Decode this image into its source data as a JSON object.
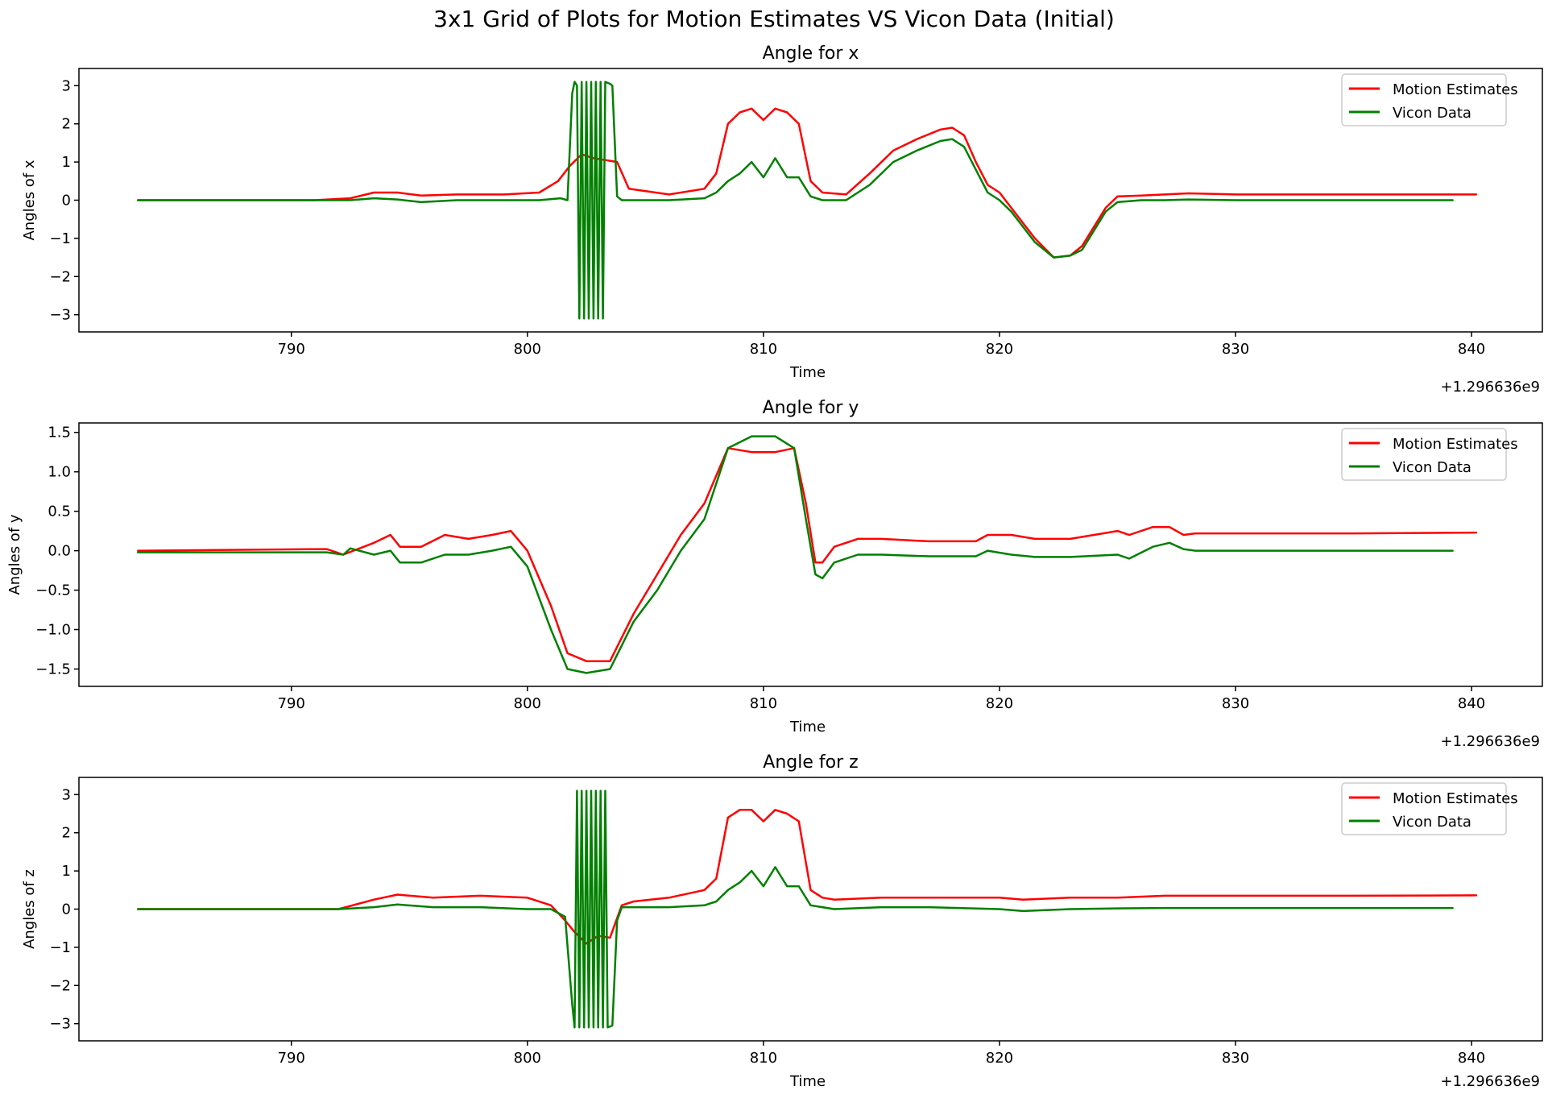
{
  "figure": {
    "suptitle": "3x1 Grid of Plots for Motion Estimates VS Vicon Data (Initial)"
  },
  "legend": {
    "entries": [
      {
        "name": "Motion Estimates",
        "color": "#ff0000"
      },
      {
        "name": "Vicon Data",
        "color": "#008000"
      }
    ]
  },
  "chart_data": [
    {
      "type": "line",
      "title": "Angle for x",
      "xlabel": "Time",
      "ylabel": "Angles of x",
      "offset_text": "+1.296636e9",
      "xlim": [
        781,
        843
      ],
      "ylim": [
        -3.45,
        3.45
      ],
      "xticks": [
        790,
        800,
        810,
        820,
        830,
        840
      ],
      "yticks": [
        -3,
        -2,
        -1,
        0,
        1,
        2,
        3
      ],
      "ytick_labels": [
        "−3",
        "−2",
        "−1",
        "0",
        "1",
        "2",
        "3"
      ],
      "legend_position": "upper right",
      "grid": false,
      "series": [
        {
          "name": "Motion Estimates",
          "color": "#ff0000",
          "x": [
            783.5,
            791.0,
            792.5,
            793.5,
            794.5,
            795.5,
            797.0,
            799.0,
            800.5,
            801.3,
            801.8,
            802.3,
            802.8,
            803.3,
            803.8,
            804.3,
            806.0,
            807.5,
            808.0,
            808.5,
            809.0,
            809.5,
            810.0,
            810.5,
            811.0,
            811.5,
            812.0,
            812.5,
            813.5,
            814.5,
            815.5,
            816.5,
            817.5,
            818.0,
            818.5,
            819.0,
            819.5,
            820.0,
            820.5,
            821.5,
            822.3,
            823.0,
            823.5,
            824.0,
            824.5,
            825.0,
            826.0,
            827.0,
            828.0,
            830.0,
            835.0,
            840.2
          ],
          "y": [
            0.0,
            0.0,
            0.05,
            0.2,
            0.2,
            0.12,
            0.15,
            0.15,
            0.2,
            0.5,
            0.9,
            1.2,
            1.1,
            1.05,
            1.0,
            0.3,
            0.15,
            0.3,
            0.7,
            2.0,
            2.3,
            2.4,
            2.1,
            2.4,
            2.3,
            2.0,
            0.5,
            0.2,
            0.15,
            0.7,
            1.3,
            1.6,
            1.85,
            1.9,
            1.7,
            1.0,
            0.4,
            0.2,
            -0.2,
            -1.0,
            -1.5,
            -1.45,
            -1.2,
            -0.7,
            -0.2,
            0.1,
            0.12,
            0.15,
            0.18,
            0.15,
            0.15,
            0.15
          ]
        },
        {
          "name": "Vicon Data",
          "color": "#008000",
          "x": [
            783.5,
            791.0,
            792.5,
            793.5,
            794.5,
            795.5,
            797.0,
            799.0,
            800.5,
            801.4,
            801.7,
            801.9,
            802.0,
            802.1,
            802.2,
            802.3,
            802.4,
            802.5,
            802.6,
            802.7,
            802.8,
            802.9,
            803.0,
            803.1,
            803.2,
            803.3,
            803.5,
            803.6,
            803.8,
            804.0,
            806.0,
            807.5,
            808.0,
            808.5,
            809.0,
            809.5,
            810.0,
            810.5,
            811.0,
            811.5,
            812.0,
            812.5,
            813.5,
            814.5,
            815.5,
            816.5,
            817.5,
            818.0,
            818.5,
            819.0,
            819.5,
            820.0,
            820.5,
            821.5,
            822.3,
            823.0,
            823.5,
            824.0,
            824.5,
            825.0,
            826.0,
            827.0,
            828.0,
            830.0,
            835.0,
            839.2
          ],
          "y": [
            0.0,
            0.0,
            0.0,
            0.05,
            0.02,
            -0.05,
            0.0,
            0.0,
            0.0,
            0.05,
            0.0,
            2.8,
            3.1,
            3.0,
            -3.1,
            3.1,
            -3.1,
            3.1,
            -3.1,
            3.1,
            -3.1,
            3.1,
            -3.1,
            3.1,
            -3.1,
            3.1,
            3.05,
            3.0,
            0.1,
            0.0,
            0.0,
            0.05,
            0.2,
            0.5,
            0.7,
            1.0,
            0.6,
            1.1,
            0.6,
            0.6,
            0.1,
            0.0,
            0.0,
            0.4,
            1.0,
            1.3,
            1.55,
            1.6,
            1.4,
            0.8,
            0.2,
            0.0,
            -0.3,
            -1.1,
            -1.5,
            -1.45,
            -1.3,
            -0.8,
            -0.3,
            -0.05,
            0.0,
            0.0,
            0.02,
            0.0,
            0.0,
            0.0
          ]
        }
      ]
    },
    {
      "type": "line",
      "title": "Angle for y",
      "xlabel": "Time",
      "ylabel": "Angles of y",
      "offset_text": "+1.296636e9",
      "xlim": [
        781,
        843
      ],
      "ylim": [
        -1.72,
        1.62
      ],
      "xticks": [
        790,
        800,
        810,
        820,
        830,
        840
      ],
      "yticks": [
        -1.5,
        -1.0,
        -0.5,
        0.0,
        0.5,
        1.0,
        1.5
      ],
      "ytick_labels": [
        "−1.5",
        "−1.0",
        "−0.5",
        "0.0",
        "0.5",
        "1.0",
        "1.5"
      ],
      "legend_position": "upper right",
      "grid": false,
      "series": [
        {
          "name": "Motion Estimates",
          "color": "#ff0000",
          "x": [
            783.5,
            791.5,
            792.2,
            793.5,
            794.2,
            794.6,
            795.5,
            796.5,
            797.5,
            798.5,
            799.3,
            800.0,
            801.0,
            801.7,
            802.5,
            803.5,
            804.5,
            805.5,
            806.5,
            807.5,
            808.5,
            809.5,
            810.5,
            811.3,
            811.8,
            812.2,
            812.5,
            813.0,
            814.0,
            815.0,
            817.0,
            819.0,
            819.5,
            820.5,
            821.5,
            823.0,
            825.0,
            825.5,
            826.5,
            827.2,
            827.8,
            828.3,
            830.0,
            835.0,
            840.2
          ],
          "y": [
            0.0,
            0.02,
            -0.05,
            0.1,
            0.2,
            0.05,
            0.05,
            0.2,
            0.15,
            0.2,
            0.25,
            0.0,
            -0.7,
            -1.3,
            -1.4,
            -1.4,
            -0.8,
            -0.3,
            0.2,
            0.6,
            1.3,
            1.25,
            1.25,
            1.3,
            0.6,
            -0.15,
            -0.15,
            0.05,
            0.15,
            0.15,
            0.12,
            0.12,
            0.2,
            0.2,
            0.15,
            0.15,
            0.25,
            0.2,
            0.3,
            0.3,
            0.2,
            0.22,
            0.22,
            0.22,
            0.23
          ]
        },
        {
          "name": "Vicon Data",
          "color": "#008000",
          "x": [
            783.5,
            791.5,
            792.2,
            792.5,
            793.5,
            794.2,
            794.6,
            795.5,
            796.5,
            797.5,
            798.5,
            799.3,
            800.0,
            801.0,
            801.7,
            802.5,
            803.5,
            804.5,
            805.5,
            806.5,
            807.5,
            808.5,
            809.5,
            810.5,
            811.3,
            811.8,
            812.2,
            812.5,
            813.0,
            814.0,
            815.0,
            817.0,
            819.0,
            819.5,
            820.5,
            821.5,
            823.0,
            825.0,
            825.5,
            826.5,
            827.2,
            827.8,
            828.3,
            830.0,
            835.0,
            839.2
          ],
          "y": [
            -0.02,
            -0.02,
            -0.05,
            0.03,
            -0.05,
            0.0,
            -0.15,
            -0.15,
            -0.05,
            -0.05,
            0.0,
            0.05,
            -0.2,
            -1.0,
            -1.5,
            -1.55,
            -1.5,
            -0.9,
            -0.5,
            0.0,
            0.4,
            1.3,
            1.45,
            1.45,
            1.3,
            0.4,
            -0.3,
            -0.35,
            -0.15,
            -0.05,
            -0.05,
            -0.07,
            -0.07,
            0.0,
            -0.05,
            -0.08,
            -0.08,
            -0.05,
            -0.1,
            0.05,
            0.1,
            0.02,
            0.0,
            0.0,
            0.0,
            0.0
          ]
        }
      ]
    },
    {
      "type": "line",
      "title": "Angle for z",
      "xlabel": "Time",
      "ylabel": "Angles of z",
      "offset_text": "+1.296636e9",
      "xlim": [
        781,
        843
      ],
      "ylim": [
        -3.45,
        3.45
      ],
      "xticks": [
        790,
        800,
        810,
        820,
        830,
        840
      ],
      "yticks": [
        -3,
        -2,
        -1,
        0,
        1,
        2,
        3
      ],
      "ytick_labels": [
        "−3",
        "−2",
        "−1",
        "0",
        "1",
        "2",
        "3"
      ],
      "legend_position": "upper right",
      "grid": false,
      "series": [
        {
          "name": "Motion Estimates",
          "color": "#ff0000",
          "x": [
            783.5,
            792.0,
            793.5,
            794.5,
            796.0,
            798.0,
            800.0,
            801.0,
            801.6,
            802.0,
            802.5,
            803.0,
            803.5,
            804.0,
            804.5,
            806.0,
            807.5,
            808.0,
            808.5,
            809.0,
            809.5,
            810.0,
            810.5,
            811.0,
            811.5,
            812.0,
            812.5,
            813.0,
            815.0,
            817.0,
            820.0,
            821.0,
            823.0,
            825.0,
            827.0,
            830.0,
            835.0,
            840.2
          ],
          "y": [
            0.0,
            0.0,
            0.25,
            0.38,
            0.3,
            0.35,
            0.3,
            0.1,
            -0.3,
            -0.6,
            -0.9,
            -0.7,
            -0.75,
            0.1,
            0.2,
            0.3,
            0.5,
            0.8,
            2.4,
            2.6,
            2.6,
            2.3,
            2.6,
            2.5,
            2.3,
            0.5,
            0.3,
            0.25,
            0.3,
            0.3,
            0.3,
            0.25,
            0.3,
            0.3,
            0.35,
            0.35,
            0.35,
            0.36
          ]
        },
        {
          "name": "Vicon Data",
          "color": "#008000",
          "x": [
            783.5,
            792.0,
            793.5,
            794.5,
            796.0,
            798.0,
            800.0,
            801.0,
            801.6,
            801.9,
            802.0,
            802.1,
            802.2,
            802.3,
            802.4,
            802.5,
            802.6,
            802.7,
            802.8,
            802.9,
            803.0,
            803.1,
            803.2,
            803.3,
            803.4,
            803.6,
            803.8,
            804.0,
            806.0,
            807.5,
            808.0,
            808.5,
            809.0,
            809.5,
            810.0,
            810.5,
            811.0,
            811.5,
            812.0,
            813.0,
            815.0,
            817.0,
            820.0,
            821.0,
            823.0,
            825.0,
            827.0,
            830.0,
            835.0,
            839.2
          ],
          "y": [
            0.0,
            0.0,
            0.05,
            0.12,
            0.05,
            0.05,
            0.0,
            0.0,
            -0.2,
            -2.5,
            -3.1,
            3.1,
            -3.1,
            3.1,
            -3.1,
            3.1,
            -3.1,
            3.1,
            -3.1,
            3.1,
            -3.1,
            3.1,
            -3.1,
            3.1,
            -3.1,
            -3.05,
            -0.3,
            0.05,
            0.05,
            0.1,
            0.2,
            0.5,
            0.7,
            1.0,
            0.6,
            1.1,
            0.6,
            0.6,
            0.1,
            0.0,
            0.05,
            0.05,
            0.0,
            -0.05,
            0.0,
            0.02,
            0.03,
            0.03,
            0.03,
            0.03
          ]
        }
      ]
    }
  ]
}
